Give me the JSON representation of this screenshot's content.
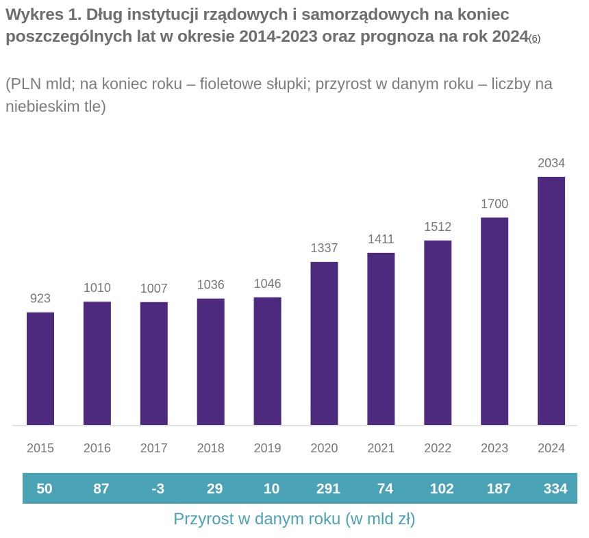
{
  "title": "Wykres 1. Dług instytucji rządowych i samorządowych na koniec poszczególnych lat w okresie 2014-2023 oraz prognoza na rok 2024",
  "footnote_ref": "(6)",
  "subtitle": "(PLN mld; na koniec roku – fioletowe słupki; przyrost w danym roku – liczby na niebieskim tle)",
  "chart_data": {
    "type": "bar",
    "categories": [
      "2015",
      "2016",
      "2017",
      "2018",
      "2019",
      "2020",
      "2021",
      "2022",
      "2023",
      "2024"
    ],
    "values": [
      923,
      1010,
      1007,
      1036,
      1046,
      1337,
      1411,
      1512,
      1700,
      2034
    ],
    "increments": [
      50,
      87,
      -3,
      29,
      10,
      291,
      74,
      102,
      187,
      334
    ],
    "increments_label": "Przyrost w danym roku (w mld zł)",
    "ylim": [
      0,
      2034
    ],
    "grid": false,
    "colors": {
      "bar": "#4e2a7e",
      "band": "#4aa3b5"
    }
  }
}
